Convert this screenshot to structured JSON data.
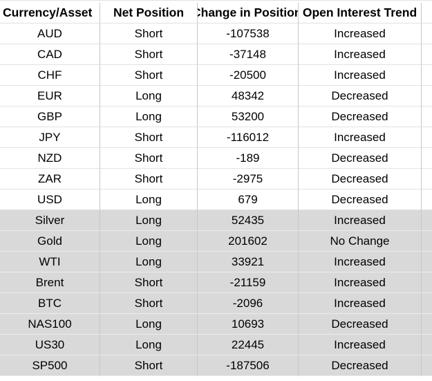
{
  "table": {
    "headers": [
      "Currency/Asset",
      "Net Position",
      "Change in Position",
      "Open Interest Trend"
    ],
    "rows": [
      {
        "asset": "AUD",
        "position": "Short",
        "change": "-107538",
        "trend": "Increased",
        "shaded": false
      },
      {
        "asset": "CAD",
        "position": "Short",
        "change": "-37148",
        "trend": "Increased",
        "shaded": false
      },
      {
        "asset": "CHF",
        "position": "Short",
        "change": "-20500",
        "trend": "Increased",
        "shaded": false
      },
      {
        "asset": "EUR",
        "position": "Long",
        "change": "48342",
        "trend": "Decreased",
        "shaded": false
      },
      {
        "asset": "GBP",
        "position": "Long",
        "change": "53200",
        "trend": "Decreased",
        "shaded": false
      },
      {
        "asset": "JPY",
        "position": "Short",
        "change": "-116012",
        "trend": "Increased",
        "shaded": false
      },
      {
        "asset": "NZD",
        "position": "Short",
        "change": "-189",
        "trend": "Decreased",
        "shaded": false
      },
      {
        "asset": "ZAR",
        "position": "Short",
        "change": "-2975",
        "trend": "Decreased",
        "shaded": false
      },
      {
        "asset": "USD",
        "position": "Long",
        "change": "679",
        "trend": "Decreased",
        "shaded": false
      },
      {
        "asset": "Silver",
        "position": "Long",
        "change": "52435",
        "trend": "Increased",
        "shaded": true
      },
      {
        "asset": "Gold",
        "position": "Long",
        "change": "201602",
        "trend": "No Change",
        "shaded": true
      },
      {
        "asset": "WTI",
        "position": "Long",
        "change": "33921",
        "trend": "Increased",
        "shaded": true
      },
      {
        "asset": "Brent",
        "position": "Short",
        "change": "-21159",
        "trend": "Increased",
        "shaded": true
      },
      {
        "asset": "BTC",
        "position": "Short",
        "change": "-2096",
        "trend": "Increased",
        "shaded": true
      },
      {
        "asset": "NAS100",
        "position": "Long",
        "change": "10693",
        "trend": "Decreased",
        "shaded": true
      },
      {
        "asset": "US30",
        "position": "Long",
        "change": "22445",
        "trend": "Increased",
        "shaded": true
      },
      {
        "asset": "SP500",
        "position": "Short",
        "change": "-187506",
        "trend": "Decreased",
        "shaded": true
      }
    ]
  },
  "colors": {
    "shaded_row": "#d9d9d9",
    "gridline": "#c6c6c6"
  }
}
